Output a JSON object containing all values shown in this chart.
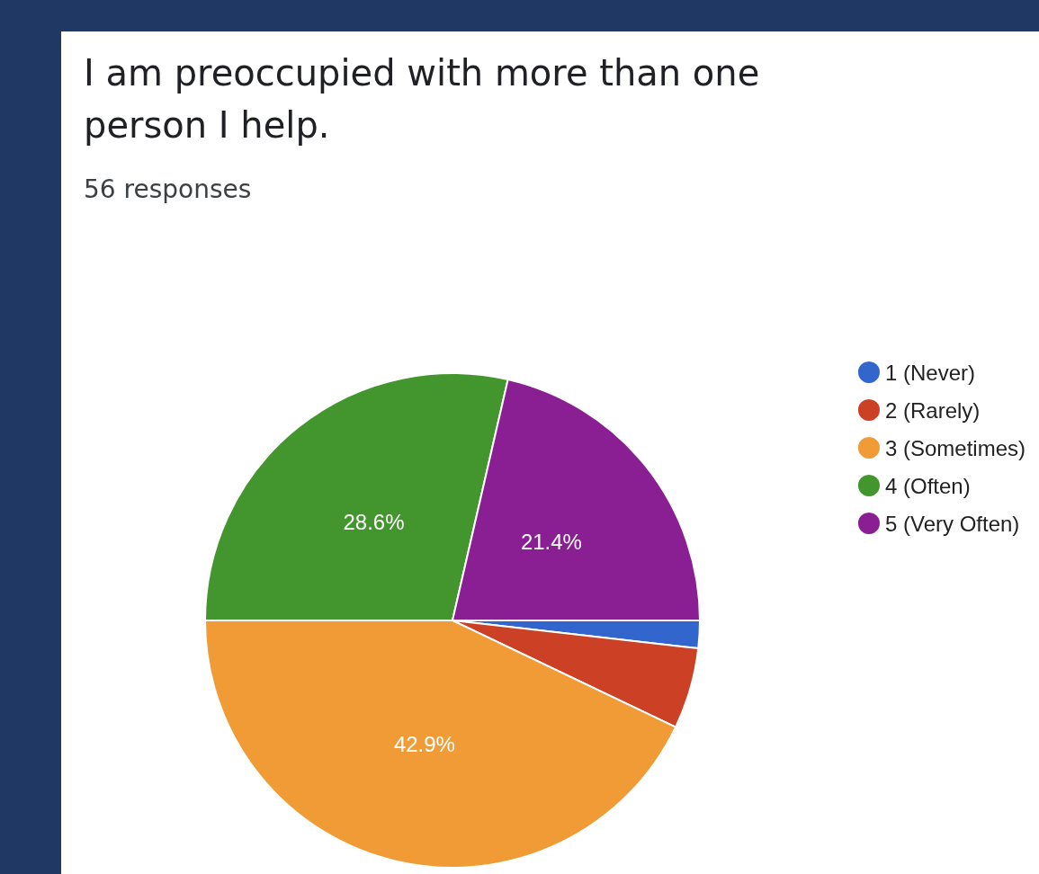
{
  "chart_data": {
    "type": "pie",
    "title": "I am preoccupied with more than one person I help.",
    "subtitle": "56 responses",
    "categories": [
      "1 (Never)",
      "2 (Rarely)",
      "3 (Sometimes)",
      "4 (Often)",
      "5 (Very Often)"
    ],
    "values": [
      1.8,
      5.3,
      42.9,
      28.6,
      21.4
    ],
    "value_labels": [
      null,
      null,
      "42.9%",
      "28.6%",
      "21.4%"
    ],
    "colors": [
      "#3366cc",
      "#cc4125",
      "#f09b36",
      "#43952e",
      "#8a1f93"
    ],
    "legend": "right"
  }
}
